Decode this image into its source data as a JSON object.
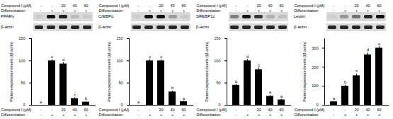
{
  "chart_data": [
    {
      "type": "bar",
      "title": "PPARγ",
      "loading_control": "β-actin",
      "ylabel": "Protein expression levels (/β-actin)",
      "categories": [
        null,
        null,
        null,
        null,
        null
      ],
      "values": [
        0,
        100,
        93,
        15,
        7
      ],
      "errors": [
        0,
        3,
        3,
        2,
        1
      ],
      "letters": [
        "a",
        "e",
        "d",
        "c",
        "b"
      ],
      "color": "#000000",
      "ylim": [
        0,
        150
      ],
      "yticks": [
        0,
        50,
        100,
        150
      ],
      "condition_rows": [
        {
          "label": "Compound I (μM)",
          "values": [
            "-",
            "-",
            "20",
            "40",
            "60"
          ]
        },
        {
          "label": "Differentiation",
          "values": [
            "-",
            "+",
            "+",
            "+",
            "+"
          ]
        }
      ]
    },
    {
      "type": "bar",
      "title": "C/EBPα",
      "loading_control": "β-actin",
      "ylabel": "Protein expression levels (/β-actin)",
      "categories": [
        null,
        null,
        null,
        null,
        null
      ],
      "values": [
        0,
        100,
        100,
        30,
        8
      ],
      "errors": [
        0,
        3,
        3,
        2,
        1
      ],
      "letters": [
        "a",
        "c",
        "c",
        "b",
        "a"
      ],
      "color": "#000000",
      "ylim": [
        0,
        150
      ],
      "yticks": [
        0,
        50,
        100,
        150
      ],
      "condition_rows": [
        {
          "label": "Compound I (μM)",
          "values": [
            "-",
            "-",
            "20",
            "40",
            "60"
          ]
        },
        {
          "label": "Differentiation",
          "values": [
            "-",
            "+",
            "+",
            "+",
            "+"
          ]
        }
      ]
    },
    {
      "type": "bar",
      "title": "SREBP1c",
      "loading_control": "β-actin",
      "ylabel": "Protein expression levels (/β-actin)",
      "categories": [
        null,
        null,
        null,
        null,
        null
      ],
      "values": [
        45,
        100,
        80,
        20,
        12
      ],
      "errors": [
        2,
        3,
        4,
        2,
        1
      ],
      "letters": [
        "b",
        "d",
        "c",
        "a",
        "a"
      ],
      "color": "#000000",
      "ylim": [
        0,
        150
      ],
      "yticks": [
        0,
        50,
        100,
        150
      ],
      "condition_rows": [
        {
          "label": "Compound I (μM)",
          "values": [
            "-",
            "-",
            "20",
            "40",
            "60"
          ]
        },
        {
          "label": "Differentiation",
          "values": [
            "-",
            "+",
            "+",
            "+",
            "+"
          ]
        }
      ]
    },
    {
      "type": "bar",
      "title": "Leptin",
      "loading_control": "β-actin",
      "ylabel": "Protein expression levels (/β-actin)",
      "categories": [
        null,
        null,
        null,
        null,
        null
      ],
      "values": [
        18,
        100,
        155,
        265,
        300
      ],
      "errors": [
        3,
        5,
        8,
        10,
        8
      ],
      "letters": [
        "a",
        "b",
        "c",
        "d",
        "e"
      ],
      "color": "#000000",
      "ylim": [
        0,
        350
      ],
      "yticks": [
        0,
        100,
        200,
        300
      ],
      "condition_rows": [
        {
          "label": "Compound I (μM)",
          "values": [
            "-",
            "-",
            "20",
            "40",
            "60"
          ]
        },
        {
          "label": "Differentiation",
          "values": [
            "-",
            "+",
            "+",
            "+",
            "+"
          ]
        }
      ]
    }
  ]
}
